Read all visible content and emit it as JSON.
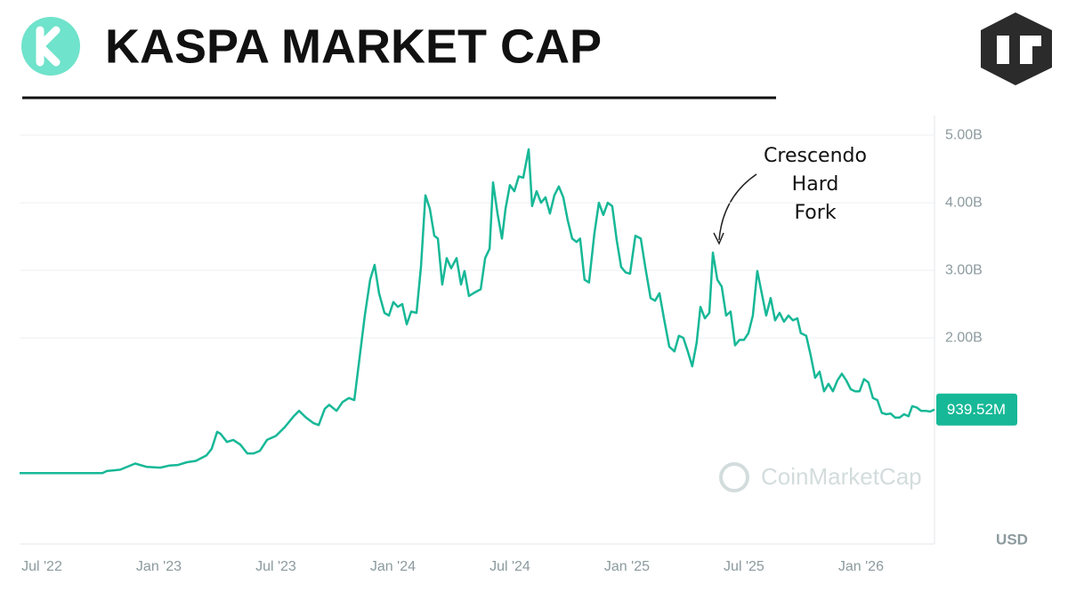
{
  "chart_data": {
    "type": "line",
    "title": "KASPA MARKET CAP",
    "annotation": [
      "Crescendo",
      "Hard",
      "Fork"
    ],
    "watermark": "CoinMarketCap",
    "y_unit_label": "USD",
    "grid": true,
    "x": [
      2022.405,
      2022.759,
      2022.778,
      2022.835,
      2022.899,
      2022.949,
      2023.006,
      2023.044,
      2023.082,
      2023.12,
      2023.158,
      2023.203,
      2023.226,
      2023.249,
      2023.264,
      2023.291,
      2023.318,
      2023.348,
      2023.378,
      2023.405,
      2023.432,
      2023.462,
      2023.5,
      2023.538,
      2023.576,
      2023.599,
      2023.629,
      2023.66,
      2023.683,
      2023.709,
      2023.728,
      2023.759,
      2023.785,
      2023.812,
      2023.835,
      2023.854,
      2023.88,
      2023.903,
      2023.922,
      2023.941,
      2023.964,
      2023.983,
      2024.002,
      2024.021,
      2024.04,
      2024.059,
      2024.078,
      2024.101,
      2024.12,
      2024.139,
      2024.158,
      2024.177,
      2024.192,
      2024.211,
      2024.23,
      2024.249,
      2024.272,
      2024.291,
      2024.306,
      2024.325,
      2024.344,
      2024.375,
      2024.394,
      2024.413,
      2024.428,
      2024.447,
      2024.466,
      2024.481,
      2024.5,
      2024.519,
      2024.538,
      2024.557,
      2024.58,
      2024.595,
      2024.614,
      2024.633,
      2024.652,
      2024.671,
      2024.69,
      2024.709,
      2024.728,
      2024.747,
      2024.766,
      2024.785,
      2024.8,
      2024.819,
      2024.838,
      2024.861,
      2024.88,
      2024.899,
      2024.918,
      2024.937,
      2024.956,
      2024.975,
      2024.994,
      2025.013,
      2025.036,
      2025.059,
      2025.078,
      2025.101,
      2025.12,
      2025.139,
      2025.158,
      2025.181,
      2025.203,
      2025.222,
      2025.241,
      2025.26,
      2025.279,
      2025.298,
      2025.314,
      2025.333,
      2025.352,
      2025.367,
      2025.386,
      2025.405,
      2025.424,
      2025.443,
      2025.462,
      2025.481,
      2025.5,
      2025.519,
      2025.538,
      2025.557,
      2025.576,
      2025.595,
      2025.614,
      2025.633,
      2025.652,
      2025.671,
      2025.69,
      2025.709,
      2025.728,
      2025.743,
      2025.766,
      2025.785,
      2025.804,
      2025.823,
      2025.842,
      2025.861,
      2025.88,
      2025.899,
      2025.918,
      2025.937,
      2025.956,
      2025.975,
      2025.994,
      2026.013,
      2026.032,
      2026.051,
      2026.07,
      2026.089,
      2026.108,
      2026.127,
      2026.146,
      2026.165,
      2026.184,
      2026.203,
      2026.219,
      2026.238,
      2026.257,
      2026.276,
      2026.295,
      2026.314
    ],
    "series": [
      {
        "color": "#17b897",
        "values": [
          0,
          0,
          0.03,
          0.05,
          0.14,
          0.09,
          0.08,
          0.11,
          0.12,
          0.16,
          0.18,
          0.26,
          0.36,
          0.61,
          0.58,
          0.46,
          0.49,
          0.42,
          0.29,
          0.29,
          0.33,
          0.49,
          0.55,
          0.68,
          0.84,
          0.92,
          0.82,
          0.74,
          0.71,
          0.95,
          1.01,
          0.92,
          1.05,
          1.11,
          1.08,
          1.61,
          2.33,
          2.86,
          3.08,
          2.66,
          2.37,
          2.33,
          2.53,
          2.46,
          2.5,
          2.2,
          2.39,
          2.37,
          3.05,
          4.11,
          3.91,
          3.51,
          3.47,
          2.79,
          3.18,
          3.03,
          3.18,
          2.79,
          2.99,
          2.62,
          2.66,
          2.72,
          3.18,
          3.32,
          4.3,
          3.84,
          3.47,
          3.91,
          4.26,
          4.17,
          4.39,
          4.37,
          4.79,
          3.95,
          4.17,
          4.0,
          4.08,
          3.84,
          4.11,
          4.24,
          4.08,
          3.74,
          3.47,
          3.42,
          3.47,
          2.86,
          2.82,
          3.55,
          4.0,
          3.82,
          4.0,
          3.95,
          3.45,
          3.05,
          2.97,
          2.95,
          3.51,
          3.47,
          3.05,
          2.59,
          2.55,
          2.66,
          2.29,
          1.87,
          1.8,
          2.03,
          2.0,
          1.8,
          1.58,
          1.93,
          2.46,
          2.29,
          2.37,
          3.26,
          2.86,
          2.76,
          2.33,
          2.39,
          1.89,
          1.97,
          1.97,
          2.07,
          2.33,
          2.99,
          2.66,
          2.33,
          2.59,
          2.26,
          2.37,
          2.24,
          2.33,
          2.26,
          2.29,
          2.07,
          2.03,
          1.74,
          1.41,
          1.5,
          1.21,
          1.32,
          1.21,
          1.37,
          1.47,
          1.37,
          1.24,
          1.21,
          1.21,
          1.39,
          1.34,
          1.11,
          1.08,
          0.89,
          0.87,
          0.88,
          0.82,
          0.82,
          0.87,
          0.84,
          0.99,
          0.97,
          0.92,
          0.92,
          0.91,
          0.93952
        ]
      }
    ],
    "last_value": {
      "value": 0.93952,
      "label": "939.52M"
    },
    "xlim": [
      2022.405,
      2026.314
    ],
    "xticks": [
      {
        "value": 2022.5,
        "label": "Jul '22"
      },
      {
        "value": 2023.0,
        "label": "Jan '23"
      },
      {
        "value": 2023.5,
        "label": "Jul '23"
      },
      {
        "value": 2024.0,
        "label": "Jan '24"
      },
      {
        "value": 2024.5,
        "label": "Jul '24"
      },
      {
        "value": 2025.0,
        "label": "Jan '25"
      },
      {
        "value": 2025.5,
        "label": "Jul '25"
      },
      {
        "value": 2026.0,
        "label": "Jan '26"
      }
    ],
    "ylim": [
      -1.05,
      5.29
    ],
    "yticks": [
      {
        "value": 2,
        "label": "2.00B"
      },
      {
        "value": 3,
        "label": "3.00B"
      },
      {
        "value": 4,
        "label": "4.00B"
      },
      {
        "value": 5,
        "label": "5.00B"
      }
    ]
  }
}
